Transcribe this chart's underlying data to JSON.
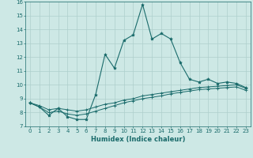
{
  "xlabel": "Humidex (Indice chaleur)",
  "bg_color": "#cde8e5",
  "grid_color": "#aecfcc",
  "line_color": "#1a6b6b",
  "xlim": [
    -0.5,
    23.5
  ],
  "ylim": [
    7,
    16
  ],
  "xticks": [
    0,
    1,
    2,
    3,
    4,
    5,
    6,
    7,
    8,
    9,
    10,
    11,
    12,
    13,
    14,
    15,
    16,
    17,
    18,
    19,
    20,
    21,
    22,
    23
  ],
  "yticks": [
    7,
    8,
    9,
    10,
    11,
    12,
    13,
    14,
    15,
    16
  ],
  "series1_x": [
    0,
    1,
    2,
    3,
    4,
    5,
    6,
    7,
    8,
    9,
    10,
    11,
    12,
    13,
    14,
    15,
    16,
    17,
    18,
    19,
    20,
    21,
    22,
    23
  ],
  "series1_y": [
    8.7,
    8.4,
    7.8,
    8.3,
    7.7,
    7.5,
    7.5,
    9.3,
    12.2,
    11.2,
    13.2,
    13.6,
    15.8,
    13.3,
    13.7,
    13.3,
    11.6,
    10.4,
    10.2,
    10.4,
    10.1,
    10.2,
    10.1,
    9.8
  ],
  "series2_x": [
    0,
    1,
    2,
    3,
    4,
    5,
    6,
    7,
    8,
    9,
    10,
    11,
    12,
    13,
    14,
    15,
    16,
    17,
    18,
    19,
    20,
    21,
    22,
    23
  ],
  "series2_y": [
    8.7,
    8.5,
    8.2,
    8.3,
    8.2,
    8.1,
    8.2,
    8.4,
    8.6,
    8.7,
    8.9,
    9.0,
    9.2,
    9.3,
    9.4,
    9.5,
    9.6,
    9.7,
    9.8,
    9.85,
    9.9,
    9.95,
    10.0,
    9.75
  ],
  "series3_x": [
    0,
    1,
    2,
    3,
    4,
    5,
    6,
    7,
    8,
    9,
    10,
    11,
    12,
    13,
    14,
    15,
    16,
    17,
    18,
    19,
    20,
    21,
    22,
    23
  ],
  "series3_y": [
    8.7,
    8.4,
    8.0,
    8.1,
    7.9,
    7.8,
    7.9,
    8.1,
    8.3,
    8.5,
    8.7,
    8.85,
    9.0,
    9.1,
    9.2,
    9.35,
    9.45,
    9.55,
    9.65,
    9.7,
    9.75,
    9.8,
    9.85,
    9.6
  ]
}
